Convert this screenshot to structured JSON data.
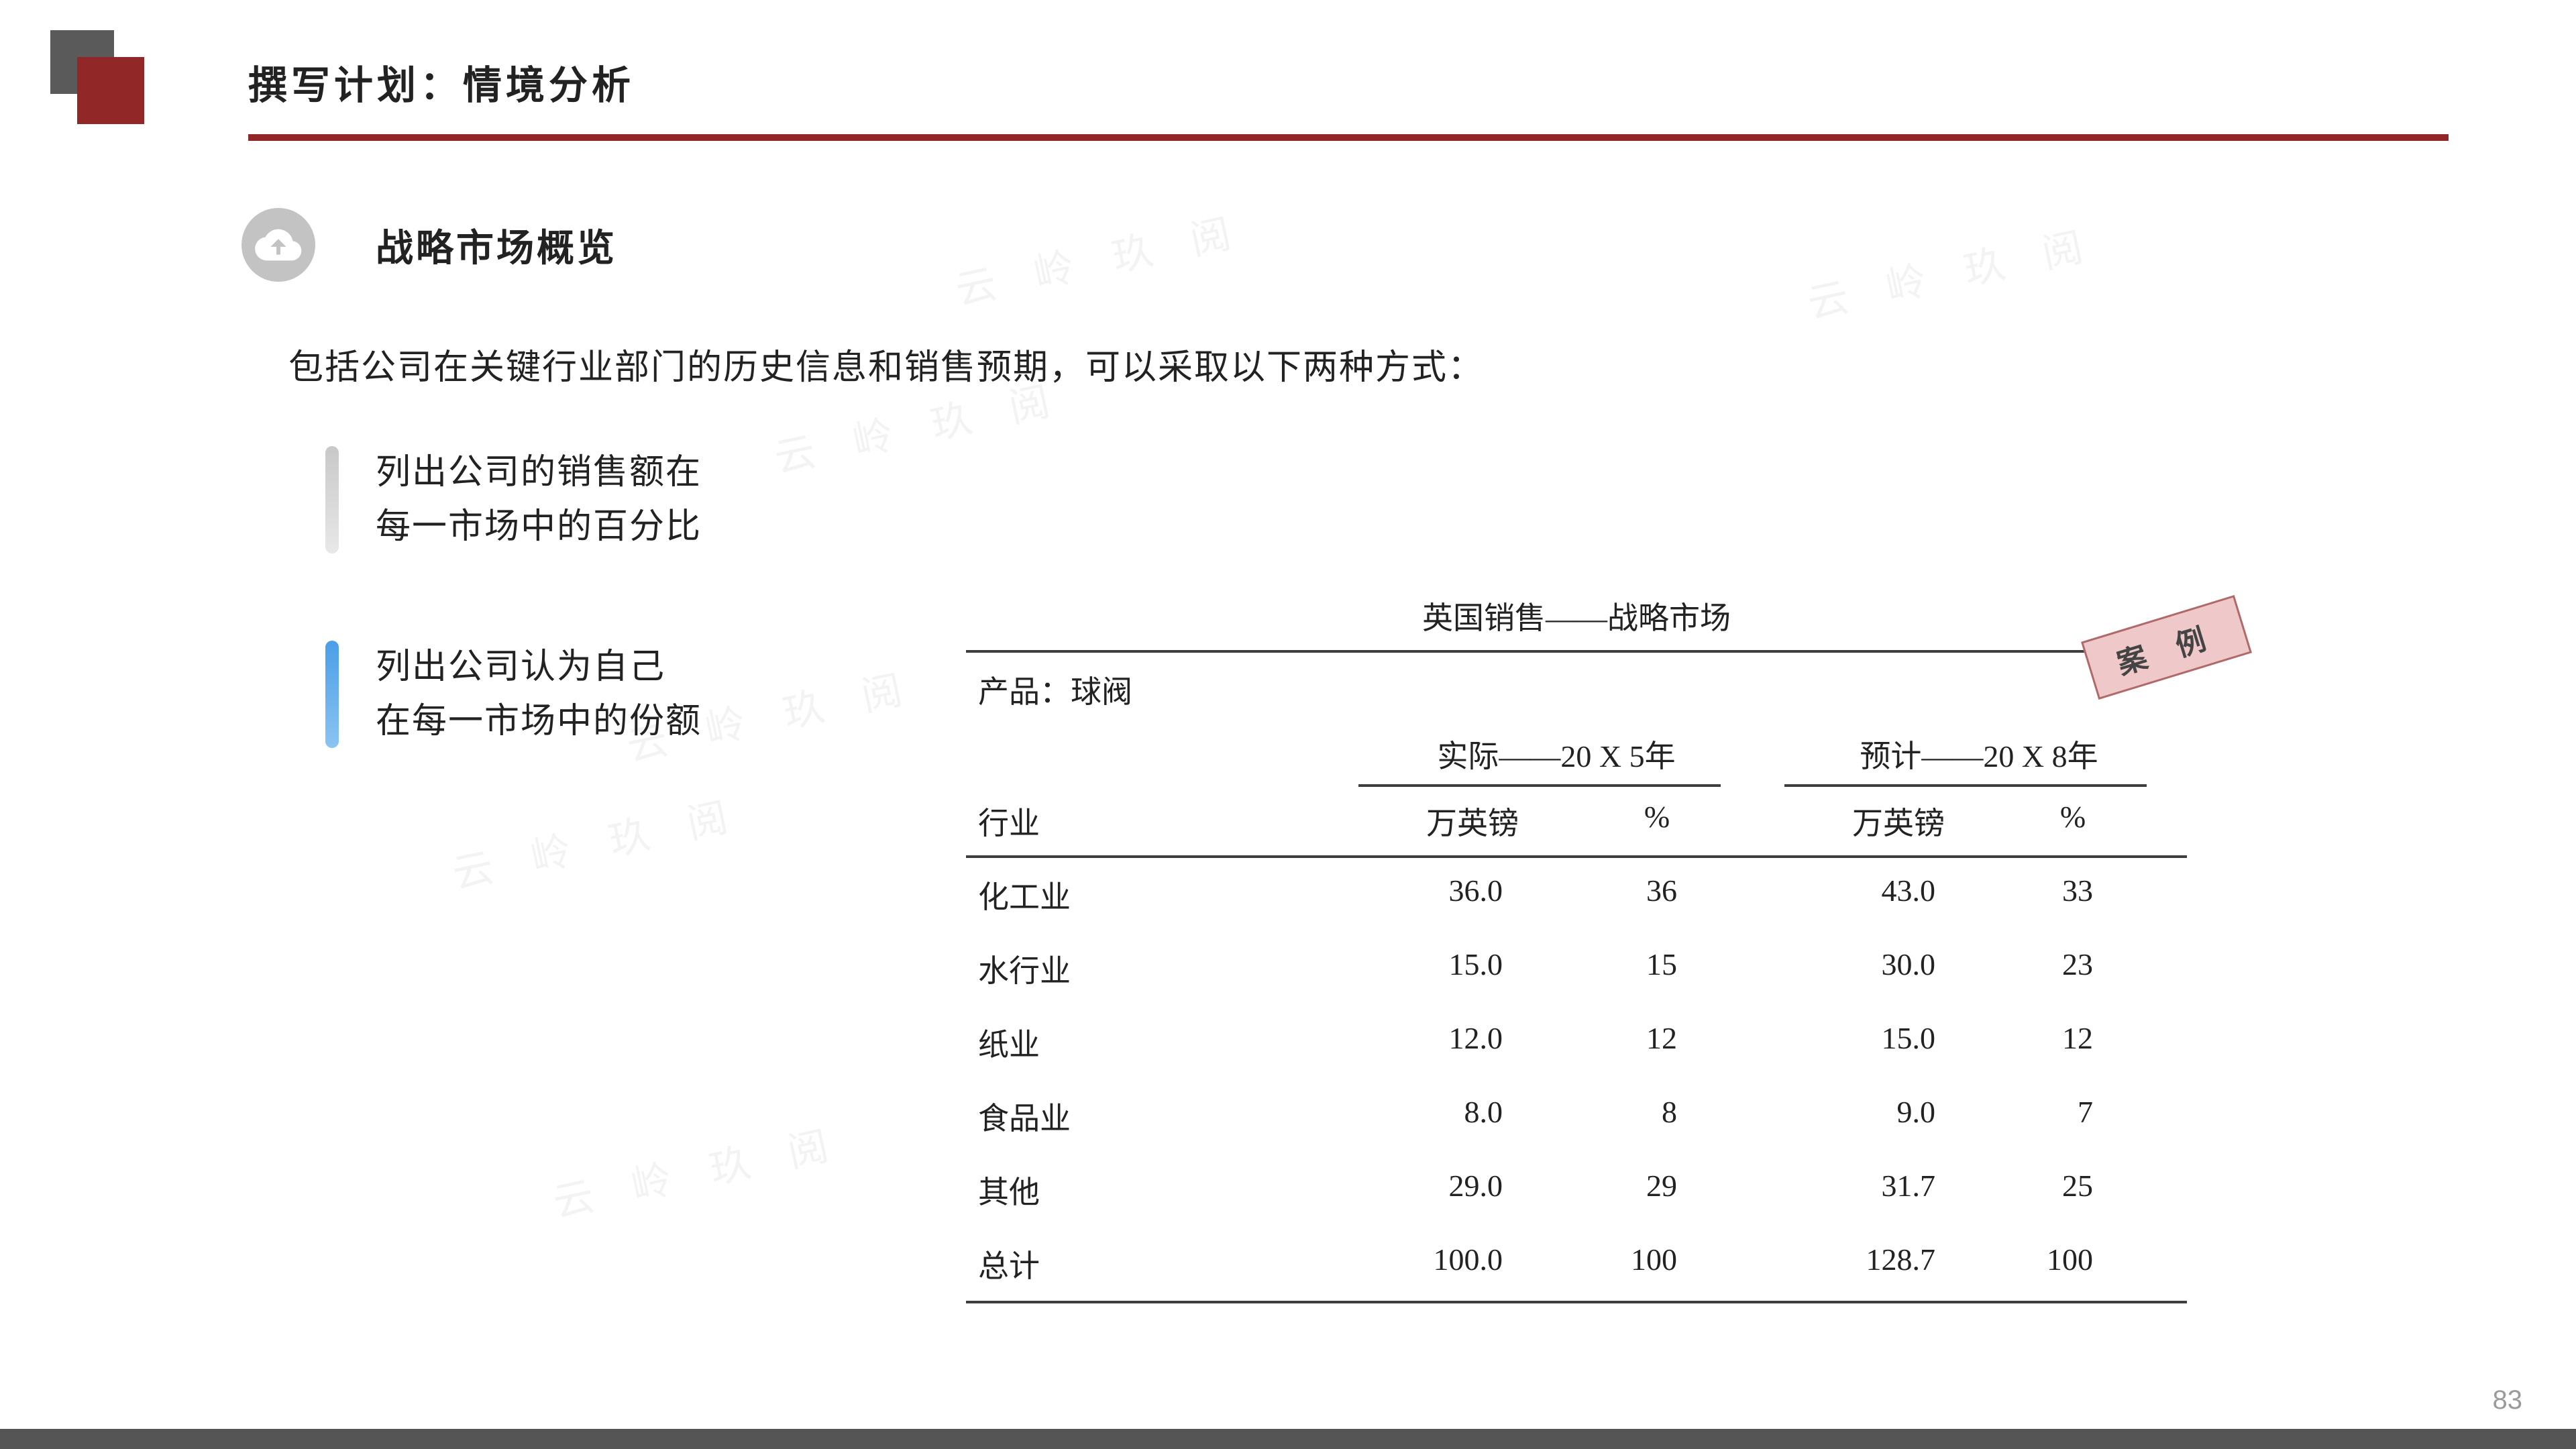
{
  "title": "撰写计划：情境分析",
  "section_heading": "战略市场概览",
  "intro": "包括公司在关键行业部门的历史信息和销售预期，可以采取以下两种方式：",
  "bullet1_line1": "列出公司的销售额在",
  "bullet1_line2": "每一市场中的百分比",
  "bullet2_line1": "列出公司认为自己",
  "bullet2_line2": "在每一市场中的份额",
  "case_badge": "案 例",
  "table": {
    "title": "英国销售——战略市场",
    "product_line": "产品：球阀",
    "header_actual": "实际——20 X 5年",
    "header_forecast": "预计——20 X 8年",
    "header_industry": "行业",
    "header_amount": "万英镑",
    "header_pct": "%",
    "rows": [
      {
        "label": "化工业",
        "a_amt": "36.0",
        "a_pct": "36",
        "f_amt": "43.0",
        "f_pct": "33"
      },
      {
        "label": "水行业",
        "a_amt": "15.0",
        "a_pct": "15",
        "f_amt": "30.0",
        "f_pct": "23"
      },
      {
        "label": "纸业",
        "a_amt": "12.0",
        "a_pct": "12",
        "f_amt": "15.0",
        "f_pct": "12"
      },
      {
        "label": "食品业",
        "a_amt": "8.0",
        "a_pct": "8",
        "f_amt": "9.0",
        "f_pct": "7"
      },
      {
        "label": "其他",
        "a_amt": "29.0",
        "a_pct": "29",
        "f_amt": "31.7",
        "f_pct": "25"
      },
      {
        "label": "总计",
        "a_amt": "100.0",
        "a_pct": "100",
        "f_amt": "128.7",
        "f_pct": "100"
      }
    ]
  },
  "page_number": "83",
  "watermark_text": "云 岭 玖 阅",
  "colors": {
    "accent_red": "#922727",
    "corner_dark": "#5a5a5a",
    "bullet_grey": "#c8c8c8",
    "bullet_blue": "#4a9ee8",
    "case_fill": "#efc9c9",
    "case_border": "#b06a6a",
    "footer": "#555555",
    "page_num": "#9b9b9b"
  }
}
